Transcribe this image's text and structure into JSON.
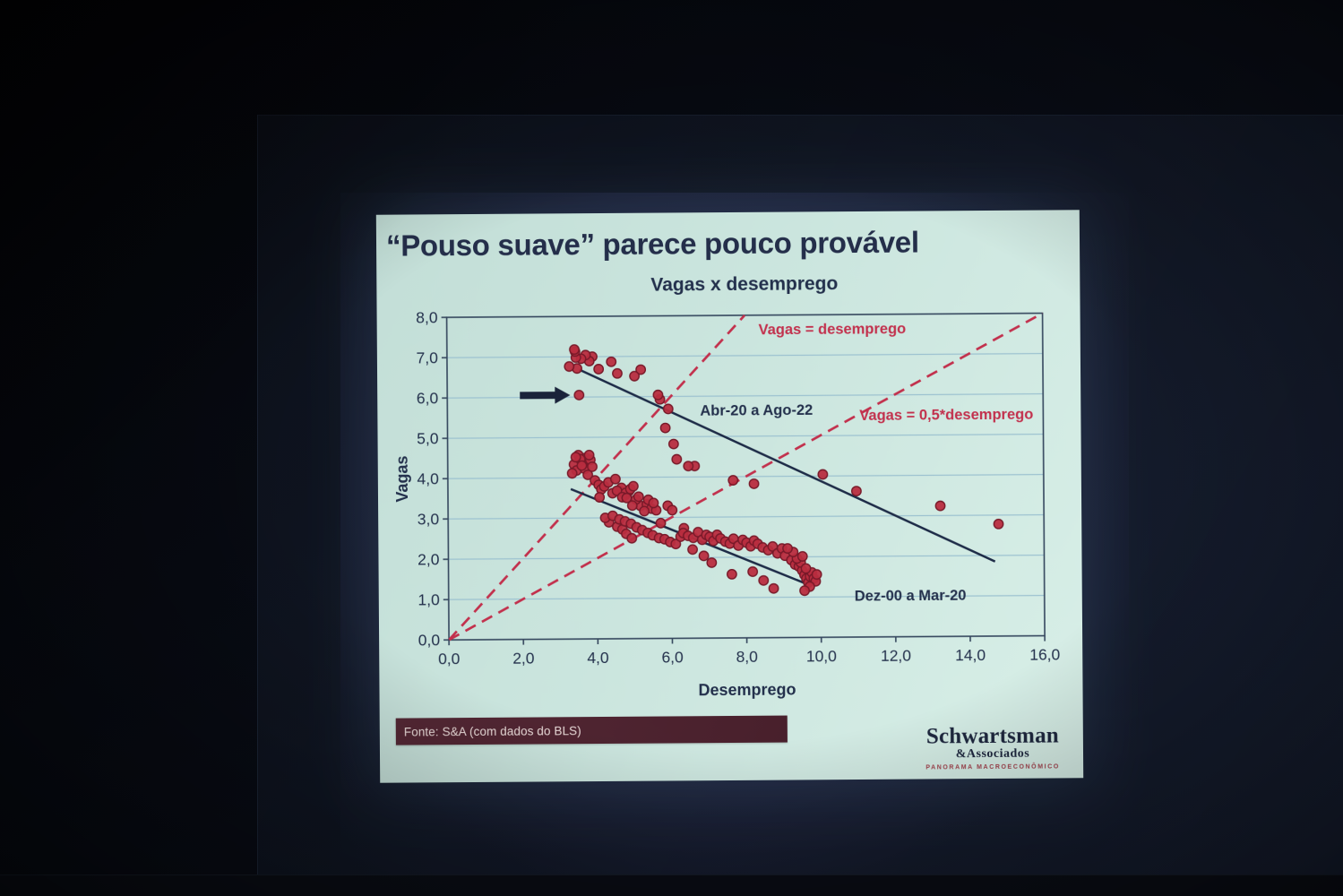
{
  "slide": {
    "title": "“Pouso suave” parece pouco provável",
    "chart_title": "Vagas x desemprego",
    "source_bar": "Fonte: S&A (com dados do BLS)",
    "logo": {
      "name": "Schwartsman",
      "suffix": "&Associados",
      "tagline": "PANORAMA MACROECONÔMICO"
    }
  },
  "colors": {
    "slide_bg": "#c9e6de",
    "navy_text": "#22304e",
    "point_fill": "#c32a3e",
    "point_edge": "#7d1728",
    "dash_red": "#cc2d4c",
    "grid": "#9ac3d2",
    "frame": "#33465f",
    "trend_navy": "#1c2b49",
    "arrow": "#19233c",
    "maroon_bar": "#4e2330",
    "logo_red": "#a8404c"
  },
  "chart_data": {
    "type": "scatter",
    "title": "Vagas x desemprego",
    "xlabel": "Desemprego",
    "ylabel": "Vagas",
    "xlim": [
      0,
      16
    ],
    "ylim": [
      0,
      8
    ],
    "grid": "horizontal",
    "gridlines_y": [
      1,
      2,
      3,
      4,
      5,
      6,
      7
    ],
    "xticks": {
      "values": [
        0,
        2,
        4,
        6,
        8,
        10,
        12,
        14,
        16
      ],
      "labels": [
        "0,0",
        "2,0",
        "4,0",
        "6,0",
        "8,0",
        "10,0",
        "12,0",
        "14,0",
        "16,0"
      ]
    },
    "yticks": {
      "values": [
        0,
        1,
        2,
        3,
        4,
        5,
        6,
        7,
        8
      ],
      "labels": [
        "0,0",
        "1,0",
        "2,0",
        "3,0",
        "4,0",
        "5,0",
        "6,0",
        "7,0",
        "8,0"
      ]
    },
    "series": [
      {
        "name": "Dez-00 a Mar-20",
        "marker": "circle",
        "points": [
          [
            3.51,
            4.56
          ],
          [
            3.71,
            4.49
          ],
          [
            3.39,
            4.33
          ],
          [
            3.63,
            4.4
          ],
          [
            3.83,
            4.44
          ],
          [
            3.46,
            4.18
          ],
          [
            3.34,
            4.11
          ],
          [
            3.68,
            4.22
          ],
          [
            3.88,
            4.27
          ],
          [
            3.76,
            4.07
          ],
          [
            3.56,
            4.46
          ],
          [
            3.44,
            4.51
          ],
          [
            3.8,
            4.56
          ],
          [
            3.6,
            4.3
          ],
          [
            3.95,
            3.93
          ],
          [
            4.05,
            3.82
          ],
          [
            4.12,
            3.71
          ],
          [
            4.07,
            3.51
          ],
          [
            4.2,
            3.78
          ],
          [
            4.31,
            3.88
          ],
          [
            4.42,
            3.61
          ],
          [
            4.5,
            3.96
          ],
          [
            4.61,
            3.67
          ],
          [
            4.76,
            3.56
          ],
          [
            4.86,
            3.66
          ],
          [
            4.66,
            3.74
          ],
          [
            4.54,
            3.67
          ],
          [
            4.78,
            3.62
          ],
          [
            4.9,
            3.71
          ],
          [
            4.68,
            3.51
          ],
          [
            4.8,
            3.49
          ],
          [
            4.98,
            3.78
          ],
          [
            5.17,
            3.29
          ],
          [
            5.34,
            3.33
          ],
          [
            5.46,
            3.22
          ],
          [
            5.59,
            3.18
          ],
          [
            5.27,
            3.16
          ],
          [
            5.05,
            3.45
          ],
          [
            5.12,
            3.52
          ],
          [
            5.38,
            3.44
          ],
          [
            4.95,
            3.3
          ],
          [
            5.52,
            3.36
          ],
          [
            4.32,
            2.89
          ],
          [
            4.54,
            2.78
          ],
          [
            4.68,
            2.71
          ],
          [
            4.78,
            2.6
          ],
          [
            4.93,
            2.49
          ],
          [
            4.22,
            3.0
          ],
          [
            4.42,
            3.05
          ],
          [
            4.6,
            2.96
          ],
          [
            4.75,
            2.91
          ],
          [
            4.91,
            2.85
          ],
          [
            5.06,
            2.76
          ],
          [
            5.21,
            2.69
          ],
          [
            5.36,
            2.62
          ],
          [
            5.49,
            2.56
          ],
          [
            5.66,
            2.49
          ],
          [
            5.81,
            2.46
          ],
          [
            5.96,
            2.39
          ],
          [
            6.11,
            2.34
          ],
          [
            6.24,
            2.52
          ],
          [
            5.71,
            2.86
          ],
          [
            5.9,
            3.29
          ],
          [
            6.02,
            3.18
          ],
          [
            6.33,
            2.73
          ],
          [
            6.31,
            2.61
          ],
          [
            6.44,
            2.54
          ],
          [
            6.58,
            2.49
          ],
          [
            6.71,
            2.63
          ],
          [
            6.82,
            2.44
          ],
          [
            6.93,
            2.56
          ],
          [
            7.02,
            2.51
          ],
          [
            7.12,
            2.41
          ],
          [
            7.22,
            2.56
          ],
          [
            7.31,
            2.47
          ],
          [
            7.44,
            2.39
          ],
          [
            7.56,
            2.34
          ],
          [
            7.66,
            2.46
          ],
          [
            7.79,
            2.29
          ],
          [
            7.91,
            2.43
          ],
          [
            8.01,
            2.36
          ],
          [
            8.12,
            2.27
          ],
          [
            8.21,
            2.41
          ],
          [
            8.31,
            2.33
          ],
          [
            8.44,
            2.24
          ],
          [
            8.59,
            2.17
          ],
          [
            8.71,
            2.26
          ],
          [
            8.84,
            2.09
          ],
          [
            8.96,
            2.21
          ],
          [
            9.04,
            2.03
          ],
          [
            6.56,
            2.2
          ],
          [
            6.86,
            2.04
          ],
          [
            7.07,
            1.87
          ],
          [
            7.61,
            1.58
          ],
          [
            8.17,
            1.64
          ],
          [
            8.46,
            1.42
          ],
          [
            8.73,
            1.22
          ],
          [
            9.21,
            1.92
          ],
          [
            9.31,
            1.81
          ],
          [
            9.41,
            1.76
          ],
          [
            9.5,
            1.66
          ],
          [
            9.56,
            1.55
          ],
          [
            9.61,
            1.46
          ],
          [
            9.66,
            1.36
          ],
          [
            9.71,
            1.51
          ],
          [
            9.76,
            1.61
          ],
          [
            9.81,
            1.46
          ],
          [
            9.86,
            1.39
          ],
          [
            9.89,
            1.56
          ],
          [
            9.46,
            1.86
          ],
          [
            9.36,
            1.96
          ],
          [
            9.6,
            1.71
          ],
          [
            9.51,
            2.01
          ],
          [
            9.7,
            1.26
          ],
          [
            9.56,
            1.16
          ],
          [
            9.26,
            2.12
          ],
          [
            9.11,
            2.21
          ]
        ]
      },
      {
        "name": "Abr-20 a Ago-22",
        "marker": "circle",
        "points": [
          [
            14.78,
            2.78
          ],
          [
            13.22,
            3.24
          ],
          [
            10.97,
            3.62
          ],
          [
            10.07,
            4.04
          ],
          [
            8.22,
            3.82
          ],
          [
            7.66,
            3.91
          ],
          [
            6.63,
            4.27
          ],
          [
            6.46,
            4.27
          ],
          [
            6.15,
            4.44
          ],
          [
            6.07,
            4.82
          ],
          [
            5.85,
            5.22
          ],
          [
            5.93,
            5.69
          ],
          [
            5.71,
            5.93
          ],
          [
            5.66,
            6.04
          ],
          [
            5.2,
            6.67
          ],
          [
            5.03,
            6.51
          ],
          [
            4.57,
            6.58
          ],
          [
            4.41,
            6.87
          ],
          [
            4.07,
            6.69
          ],
          [
            3.9,
            7.0
          ],
          [
            3.82,
            6.89
          ],
          [
            3.72,
            7.04
          ],
          [
            3.6,
            6.95
          ],
          [
            3.54,
            6.05
          ],
          [
            3.49,
            6.71
          ],
          [
            3.46,
            6.98
          ],
          [
            3.44,
            7.13
          ],
          [
            3.42,
            7.18
          ],
          [
            3.28,
            6.76
          ]
        ]
      }
    ],
    "reference_lines": [
      {
        "label": "Vagas = desemprego",
        "from": [
          0,
          0
        ],
        "to": [
          8,
          8
        ],
        "style": "dashed",
        "label_pos": [
          10.35,
          7.52
        ]
      },
      {
        "label": "Vagas = 0,5*desemprego",
        "from": [
          0,
          0
        ],
        "to": [
          16,
          8
        ],
        "style": "dashed",
        "label_pos": [
          13.4,
          5.38
        ]
      }
    ],
    "trend_lines": [
      {
        "label": "Abr-20 a Ago-22",
        "from": [
          3.55,
          6.68
        ],
        "to": [
          14.68,
          1.85
        ],
        "label_pos": [
          8.3,
          5.52
        ]
      },
      {
        "label": "Dez-00 a Mar-20",
        "from": [
          3.3,
          3.72
        ],
        "to": [
          9.58,
          1.34
        ],
        "label_pos": [
          12.4,
          0.9
        ]
      }
    ],
    "annotations": {
      "arrow": {
        "type": "arrow",
        "from": [
          1.95,
          6.05
        ],
        "to": [
          3.3,
          6.05
        ]
      }
    }
  }
}
